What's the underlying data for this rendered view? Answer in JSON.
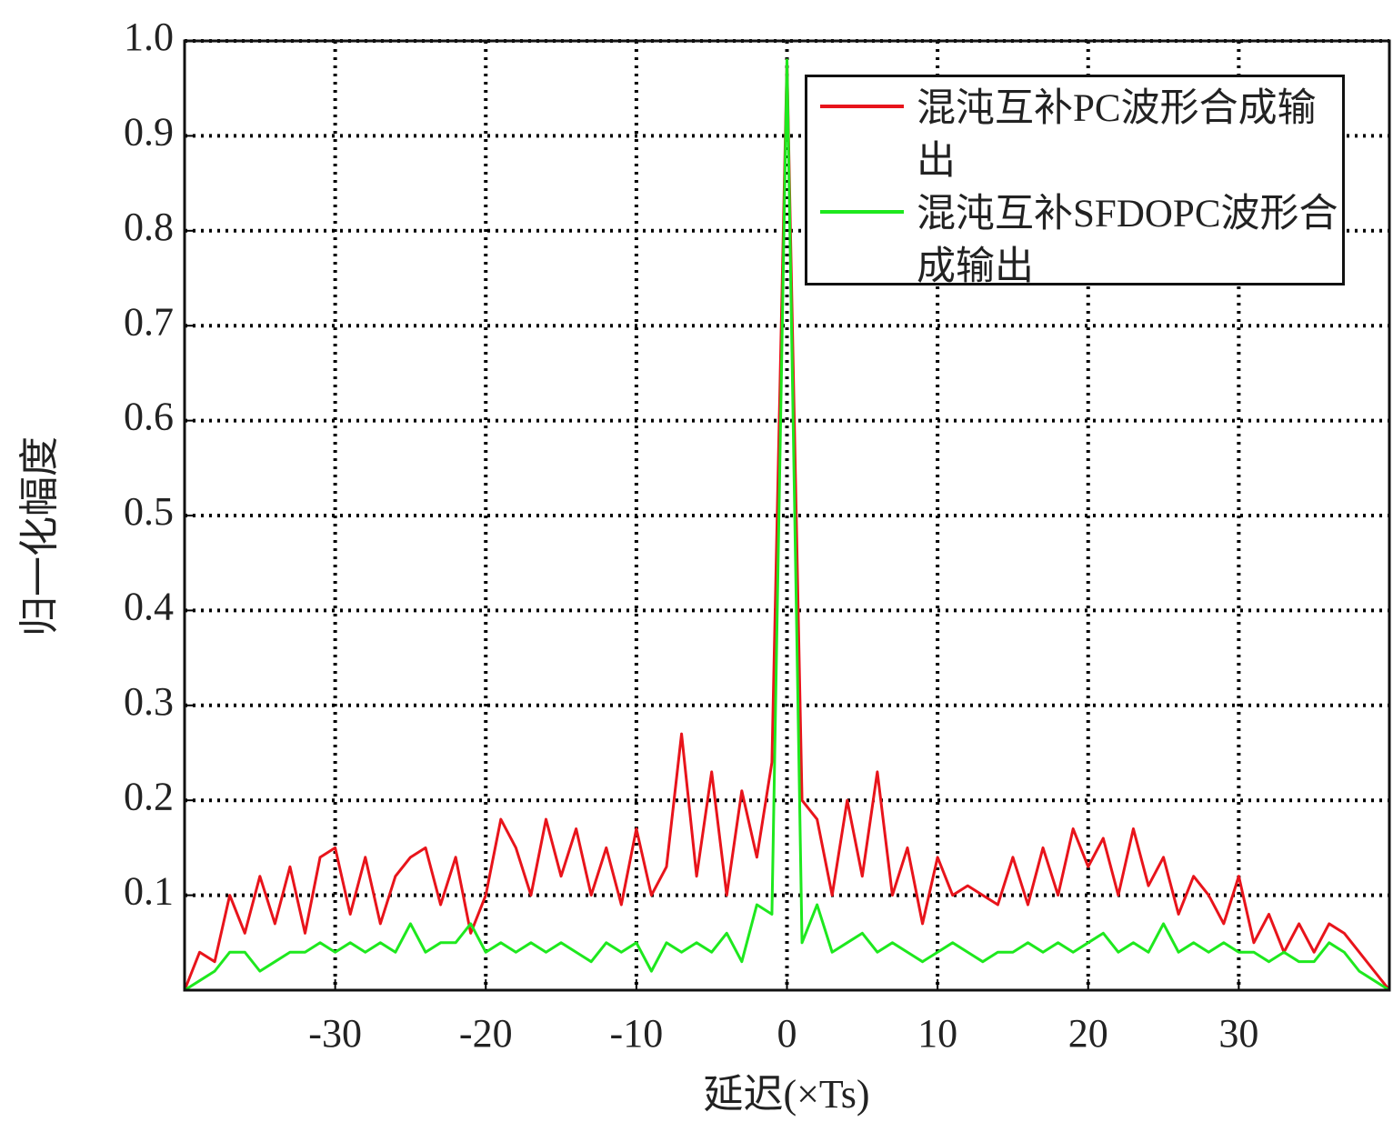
{
  "chart_data": {
    "type": "line",
    "xlabel": "延迟(×Ts)",
    "ylabel": "归一化幅度",
    "x": [
      -40,
      -39,
      -38,
      -37,
      -36,
      -35,
      -34,
      -33,
      -32,
      -31,
      -30,
      -29,
      -28,
      -27,
      -26,
      -25,
      -24,
      -23,
      -22,
      -21,
      -20,
      -19,
      -18,
      -17,
      -16,
      -15,
      -14,
      -13,
      -12,
      -11,
      -10,
      -9,
      -8,
      -7,
      -6,
      -5,
      -4,
      -3,
      -2,
      -1,
      0,
      1,
      2,
      3,
      4,
      5,
      6,
      7,
      8,
      9,
      10,
      11,
      12,
      13,
      14,
      15,
      16,
      17,
      18,
      19,
      20,
      21,
      22,
      23,
      24,
      25,
      26,
      27,
      28,
      29,
      30,
      31,
      32,
      33,
      34,
      35,
      36,
      37,
      38,
      39,
      40
    ],
    "series": [
      {
        "name": "混沌互补PC波形合成输出",
        "color": "#e8141b",
        "values": [
          0,
          0.04,
          0.03,
          0.1,
          0.06,
          0.12,
          0.07,
          0.13,
          0.06,
          0.14,
          0.15,
          0.08,
          0.14,
          0.07,
          0.12,
          0.14,
          0.15,
          0.09,
          0.14,
          0.06,
          0.1,
          0.18,
          0.15,
          0.1,
          0.18,
          0.12,
          0.17,
          0.1,
          0.15,
          0.09,
          0.17,
          0.1,
          0.13,
          0.27,
          0.12,
          0.23,
          0.1,
          0.21,
          0.14,
          0.24,
          0.98,
          0.2,
          0.18,
          0.1,
          0.2,
          0.12,
          0.23,
          0.1,
          0.15,
          0.07,
          0.14,
          0.1,
          0.11,
          0.1,
          0.09,
          0.14,
          0.09,
          0.15,
          0.1,
          0.17,
          0.13,
          0.16,
          0.1,
          0.17,
          0.11,
          0.14,
          0.08,
          0.12,
          0.1,
          0.07,
          0.12,
          0.05,
          0.08,
          0.04,
          0.07,
          0.04,
          0.07,
          0.06,
          0.04,
          0.02,
          0
        ]
      },
      {
        "name": "混沌互补SFDOPC波形合成输出",
        "color": "#1ee81e",
        "values": [
          0,
          0.01,
          0.02,
          0.04,
          0.04,
          0.02,
          0.03,
          0.04,
          0.04,
          0.05,
          0.04,
          0.05,
          0.04,
          0.05,
          0.04,
          0.07,
          0.04,
          0.05,
          0.05,
          0.07,
          0.04,
          0.05,
          0.04,
          0.05,
          0.04,
          0.05,
          0.04,
          0.03,
          0.05,
          0.04,
          0.05,
          0.02,
          0.05,
          0.04,
          0.05,
          0.04,
          0.06,
          0.03,
          0.09,
          0.08,
          0.98,
          0.05,
          0.09,
          0.04,
          0.05,
          0.06,
          0.04,
          0.05,
          0.04,
          0.03,
          0.04,
          0.05,
          0.04,
          0.03,
          0.04,
          0.04,
          0.05,
          0.04,
          0.05,
          0.04,
          0.05,
          0.06,
          0.04,
          0.05,
          0.04,
          0.07,
          0.04,
          0.05,
          0.04,
          0.05,
          0.04,
          0.04,
          0.03,
          0.04,
          0.03,
          0.03,
          0.05,
          0.04,
          0.02,
          0.01,
          0
        ]
      }
    ],
    "xlim": [
      -40,
      40
    ],
    "xticks": [
      -30,
      -20,
      -10,
      0,
      10,
      20,
      30
    ],
    "ylim": [
      0,
      1
    ],
    "yticks": [
      0.1,
      0.2,
      0.3,
      0.4,
      0.5,
      0.6,
      0.7,
      0.8,
      0.9,
      {
        "value": 1,
        "label": "1.0"
      }
    ],
    "grid": true,
    "legend": "upper right"
  }
}
